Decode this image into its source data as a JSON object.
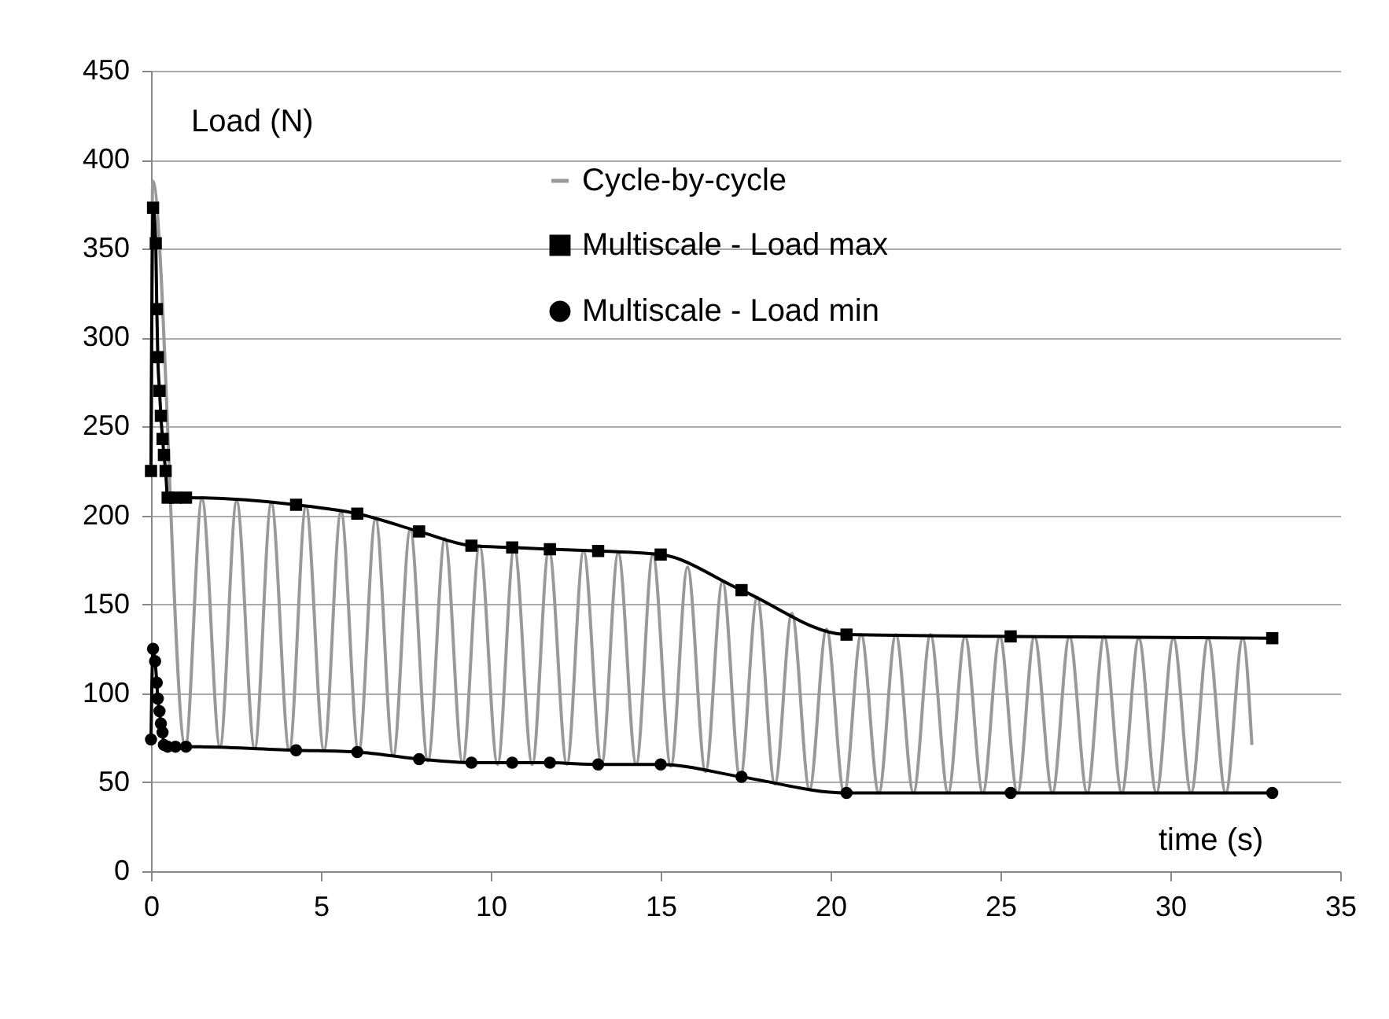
{
  "chart_data": {
    "type": "line",
    "xlabel": "time (s)",
    "ylabel": "Load (N)",
    "xlim": [
      0,
      35
    ],
    "xticks": [
      0,
      5,
      10,
      15,
      20,
      25,
      30,
      35
    ],
    "ylim": [
      0,
      450
    ],
    "yticks": [
      0,
      50,
      100,
      150,
      200,
      250,
      300,
      350,
      400,
      450
    ],
    "grid": "y",
    "legend": "top",
    "series": [
      {
        "name": "Cycle-by-cycle",
        "color": "#999999",
        "marker": "none",
        "x": [
          0,
          0.05,
          1.01,
          1.5,
          2.03,
          2.52,
          3.05,
          3.54,
          4.07,
          4.56,
          5.09,
          5.59,
          6.11,
          6.61,
          7.13,
          7.63,
          8.15,
          8.65,
          9.17,
          9.67,
          10.2,
          10.69,
          11.22,
          11.71,
          12.24,
          12.73,
          13.26,
          13.75,
          14.28,
          14.77,
          15.3,
          15.79,
          16.32,
          16.82,
          17.34,
          17.84,
          18.36,
          18.86,
          19.38,
          19.88,
          20.4,
          20.9,
          21.42,
          21.92,
          22.44,
          22.94,
          23.46,
          23.96,
          24.48,
          24.98,
          25.5,
          26,
          26.53,
          27.03,
          27.55,
          28.05,
          28.57,
          29.07,
          29.59,
          30.09,
          30.61,
          31.11,
          31.63,
          32.13,
          32.4
        ],
        "values": [
          225,
          388,
          70,
          209,
          70,
          208,
          69,
          207,
          68,
          205,
          68,
          202,
          67,
          198,
          65,
          192,
          62,
          187,
          61,
          183,
          60,
          182,
          60,
          181,
          60,
          180,
          60,
          179,
          60,
          178,
          59,
          171,
          56,
          163,
          52,
          154,
          49,
          145,
          46,
          136,
          44,
          133,
          44,
          133,
          44,
          133,
          44,
          132,
          44,
          132,
          44,
          132,
          44,
          132,
          44,
          132,
          44,
          131,
          44,
          131,
          44,
          131,
          44,
          131,
          71
        ]
      },
      {
        "name": "Multiscale - Load max",
        "color": "#000000",
        "marker": "square",
        "x": [
          0,
          0.06,
          0.14,
          0.17,
          0.2,
          0.25,
          0.29,
          0.34,
          0.38,
          0.43,
          0.49,
          0.72,
          1.03,
          4.27,
          6.07,
          7.89,
          9.43,
          10.63,
          11.74,
          13.16,
          15,
          17.38,
          20.47,
          25.3,
          33
        ],
        "values": [
          225,
          373,
          353,
          316,
          289,
          270,
          256,
          243,
          234,
          225,
          210,
          210,
          210,
          206,
          201,
          191,
          183,
          182,
          181,
          180,
          178,
          158,
          133,
          132,
          131
        ]
      },
      {
        "name": "Multiscale - Load min",
        "color": "#000000",
        "marker": "circle",
        "x": [
          0,
          0.06,
          0.12,
          0.17,
          0.2,
          0.25,
          0.29,
          0.34,
          0.38,
          0.49,
          0.72,
          1.03,
          4.27,
          6.07,
          7.89,
          9.43,
          10.63,
          11.74,
          13.16,
          15,
          17.38,
          20.47,
          25.3,
          33
        ],
        "values": [
          74,
          125,
          118,
          106,
          97,
          90,
          83,
          78,
          71,
          70,
          70,
          70,
          68,
          67,
          63,
          61,
          61,
          61,
          60,
          60,
          53,
          44,
          44,
          44
        ]
      }
    ]
  }
}
